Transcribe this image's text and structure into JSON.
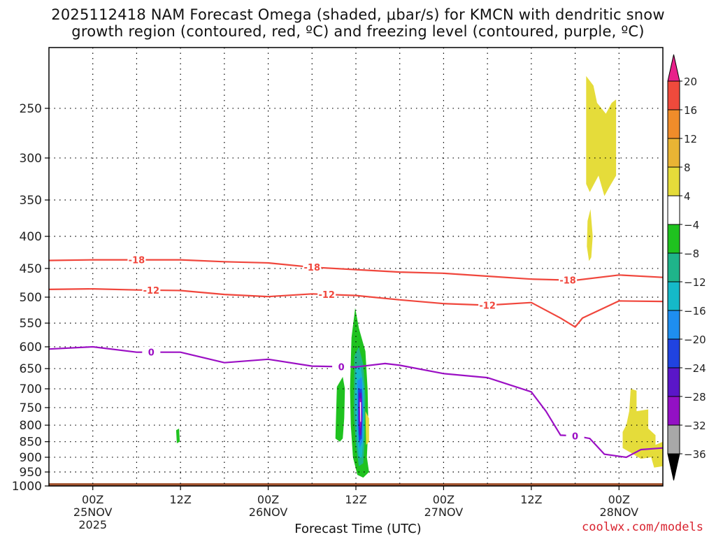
{
  "chart_data": {
    "type": "heatmap",
    "title_line1": "2025112418 NAM Forecast Omega (shaded, μbar/s) for KMCN with dendritic snow",
    "title_line2": "growth region (contoured, red, ºC) and freezing level (contoured, purple, ºC)",
    "xlabel": "Forecast Time (UTC)",
    "ylabel": "",
    "y_axis_pressure_hPa": [
      250,
      300,
      350,
      400,
      450,
      500,
      550,
      600,
      650,
      700,
      750,
      800,
      850,
      900,
      950,
      1000
    ],
    "y_tick_labels": [
      "250",
      "300",
      "350",
      "400",
      "450",
      "500",
      "550",
      "600",
      "650",
      "700",
      "750",
      "800",
      "850",
      "900",
      "950",
      "1000"
    ],
    "x_ticks": [
      {
        "label": "00Z",
        "sub": "25NOV",
        "sub2": "2025",
        "hour": 0
      },
      {
        "label": "12Z",
        "sub": "",
        "sub2": "",
        "hour": 12
      },
      {
        "label": "00Z",
        "sub": "26NOV",
        "sub2": "",
        "hour": 24
      },
      {
        "label": "12Z",
        "sub": "",
        "sub2": "",
        "hour": 36
      },
      {
        "label": "00Z",
        "sub": "27NOV",
        "sub2": "",
        "hour": 48
      },
      {
        "label": "12Z",
        "sub": "",
        "sub2": "",
        "hour": 60
      },
      {
        "label": "00Z",
        "sub": "28NOV",
        "sub2": "",
        "hour": 72
      }
    ],
    "x_range_hours": [
      -6,
      78
    ],
    "y_range_hPa": [
      200,
      1000
    ],
    "grid": true,
    "colorbar": {
      "levels": [
        20,
        16,
        12,
        8,
        4,
        -4,
        -8,
        -12,
        -16,
        -20,
        -24,
        -28,
        -32,
        -36
      ],
      "labels": [
        "20",
        "16",
        "12",
        "8",
        "4",
        "−4",
        "−8",
        "−12",
        "−16",
        "−20",
        "−24",
        "−28",
        "−32",
        "−36"
      ],
      "colors": [
        "#e8208a",
        "#ef4a3c",
        "#f08c2a",
        "#e9b434",
        "#e5dc3a",
        "#ffffff",
        "#1fc21f",
        "#1fb48a",
        "#15b9c8",
        "#1e8ef0",
        "#2043e0",
        "#5a16c8",
        "#9310c4",
        "#a8a8a8",
        "#000000"
      ]
    },
    "series": [
      {
        "name": "-18",
        "color": "#f0463c",
        "points": [
          [
            -6,
            437
          ],
          [
            0,
            436
          ],
          [
            6,
            436
          ],
          [
            12,
            436
          ],
          [
            18,
            439
          ],
          [
            24,
            441
          ],
          [
            30,
            448
          ],
          [
            36,
            452
          ],
          [
            42,
            456
          ],
          [
            48,
            458
          ],
          [
            54,
            463
          ],
          [
            60,
            468
          ],
          [
            66,
            470
          ],
          [
            72,
            461
          ],
          [
            78,
            465
          ]
        ]
      },
      {
        "name": "-12",
        "color": "#f0463c",
        "points": [
          [
            -6,
            486
          ],
          [
            0,
            485
          ],
          [
            6,
            487
          ],
          [
            12,
            488
          ],
          [
            18,
            495
          ],
          [
            24,
            499
          ],
          [
            30,
            494
          ],
          [
            36,
            497
          ],
          [
            42,
            505
          ],
          [
            48,
            512
          ],
          [
            54,
            515
          ],
          [
            60,
            510
          ],
          [
            64,
            540
          ],
          [
            66,
            558
          ],
          [
            67,
            540
          ],
          [
            72,
            507
          ],
          [
            78,
            508
          ]
        ]
      },
      {
        "name": "0",
        "color": "#9b0fc4",
        "points": [
          [
            -6,
            605
          ],
          [
            0,
            600
          ],
          [
            6,
            612
          ],
          [
            12,
            612
          ],
          [
            18,
            636
          ],
          [
            24,
            628
          ],
          [
            30,
            644
          ],
          [
            36,
            646
          ],
          [
            40,
            638
          ],
          [
            42,
            642
          ],
          [
            48,
            662
          ],
          [
            54,
            672
          ],
          [
            60,
            708
          ],
          [
            62,
            760
          ],
          [
            64,
            830
          ],
          [
            66,
            832
          ],
          [
            68,
            840
          ],
          [
            70,
            890
          ],
          [
            73,
            900
          ],
          [
            75,
            875
          ],
          [
            78,
            870
          ]
        ]
      }
    ],
    "omega_regions_note": "shaded regions are omega values"
  },
  "watermark": "coolwx.com/models"
}
